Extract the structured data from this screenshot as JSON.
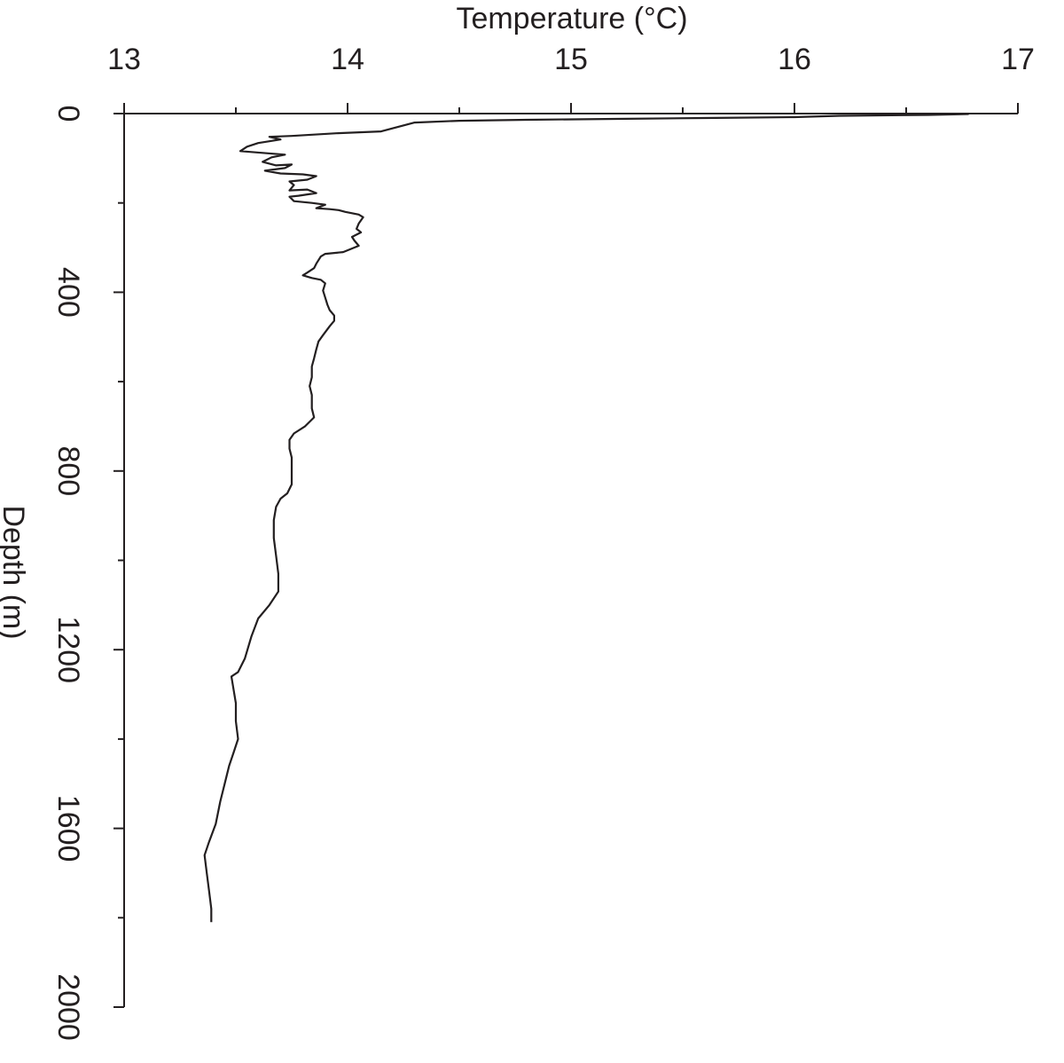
{
  "chart_data": {
    "type": "line",
    "title": "",
    "xlabel": "Temperature (°C)",
    "ylabel": "Depth (m)",
    "xlim": [
      13,
      17
    ],
    "ylim": [
      0,
      2000
    ],
    "y_inverted": true,
    "x_axis_position": "top",
    "x_ticks": [
      13,
      14,
      15,
      16,
      17
    ],
    "x_minor_ticks": [
      13.5,
      14.5,
      15.5,
      16.5
    ],
    "y_ticks": [
      0,
      400,
      800,
      1200,
      1600,
      2000
    ],
    "y_minor_ticks": [
      200,
      600,
      1000,
      1400,
      1800
    ],
    "grid": false,
    "line_color": "#231f20",
    "series": [
      {
        "points": [
          [
            16.78,
            1
          ],
          [
            16.6,
            3
          ],
          [
            16.2,
            5
          ],
          [
            16.0,
            8
          ],
          [
            15.6,
            10
          ],
          [
            15.2,
            12
          ],
          [
            14.8,
            14
          ],
          [
            14.5,
            16
          ],
          [
            14.3,
            20
          ],
          [
            14.15,
            40
          ],
          [
            13.95,
            44
          ],
          [
            13.75,
            50
          ],
          [
            13.65,
            52
          ],
          [
            13.7,
            58
          ],
          [
            13.6,
            66
          ],
          [
            13.55,
            74
          ],
          [
            13.52,
            84
          ],
          [
            13.62,
            88
          ],
          [
            13.72,
            92
          ],
          [
            13.66,
            98
          ],
          [
            13.62,
            108
          ],
          [
            13.68,
            116
          ],
          [
            13.75,
            114
          ],
          [
            13.72,
            122
          ],
          [
            13.63,
            128
          ],
          [
            13.7,
            134
          ],
          [
            13.8,
            136
          ],
          [
            13.86,
            140
          ],
          [
            13.82,
            148
          ],
          [
            13.74,
            152
          ],
          [
            13.76,
            160
          ],
          [
            13.74,
            172
          ],
          [
            13.82,
            170
          ],
          [
            13.86,
            178
          ],
          [
            13.78,
            184
          ],
          [
            13.74,
            186
          ],
          [
            13.76,
            196
          ],
          [
            13.84,
            200
          ],
          [
            13.9,
            204
          ],
          [
            13.86,
            212
          ],
          [
            13.92,
            214
          ],
          [
            13.96,
            216
          ],
          [
            13.99,
            220
          ],
          [
            14.05,
            226
          ],
          [
            14.07,
            232
          ],
          [
            14.05,
            246
          ],
          [
            14.04,
            258
          ],
          [
            14.06,
            266
          ],
          [
            14.02,
            276
          ],
          [
            14.03,
            284
          ],
          [
            14.05,
            296
          ],
          [
            13.98,
            310
          ],
          [
            13.9,
            314
          ],
          [
            13.88,
            320
          ],
          [
            13.86,
            336
          ],
          [
            13.85,
            346
          ],
          [
            13.82,
            356
          ],
          [
            13.8,
            362
          ],
          [
            13.84,
            368
          ],
          [
            13.88,
            372
          ],
          [
            13.9,
            380
          ],
          [
            13.89,
            396
          ],
          [
            13.9,
            412
          ],
          [
            13.91,
            428
          ],
          [
            13.92,
            440
          ],
          [
            13.94,
            452
          ],
          [
            13.94,
            464
          ],
          [
            13.92,
            476
          ],
          [
            13.89,
            496
          ],
          [
            13.87,
            510
          ],
          [
            13.86,
            528
          ],
          [
            13.85,
            548
          ],
          [
            13.84,
            566
          ],
          [
            13.84,
            590
          ],
          [
            13.83,
            610
          ],
          [
            13.84,
            630
          ],
          [
            13.84,
            660
          ],
          [
            13.85,
            680
          ],
          [
            13.81,
            700
          ],
          [
            13.76,
            716
          ],
          [
            13.74,
            730
          ],
          [
            13.74,
            750
          ],
          [
            13.75,
            770
          ],
          [
            13.75,
            800
          ],
          [
            13.75,
            830
          ],
          [
            13.73,
            850
          ],
          [
            13.7,
            862
          ],
          [
            13.68,
            880
          ],
          [
            13.67,
            910
          ],
          [
            13.67,
            950
          ],
          [
            13.68,
            990
          ],
          [
            13.69,
            1030
          ],
          [
            13.69,
            1070
          ],
          [
            13.65,
            1100
          ],
          [
            13.6,
            1130
          ],
          [
            13.57,
            1170
          ],
          [
            13.54,
            1220
          ],
          [
            13.51,
            1250
          ],
          [
            13.48,
            1260
          ],
          [
            13.49,
            1290
          ],
          [
            13.5,
            1320
          ],
          [
            13.5,
            1360
          ],
          [
            13.51,
            1400
          ],
          [
            13.49,
            1430
          ],
          [
            13.47,
            1460
          ],
          [
            13.45,
            1500
          ],
          [
            13.43,
            1540
          ],
          [
            13.41,
            1590
          ],
          [
            13.38,
            1630
          ],
          [
            13.36,
            1660
          ],
          [
            13.37,
            1700
          ],
          [
            13.38,
            1740
          ],
          [
            13.39,
            1780
          ],
          [
            13.39,
            1810
          ]
        ]
      }
    ]
  }
}
